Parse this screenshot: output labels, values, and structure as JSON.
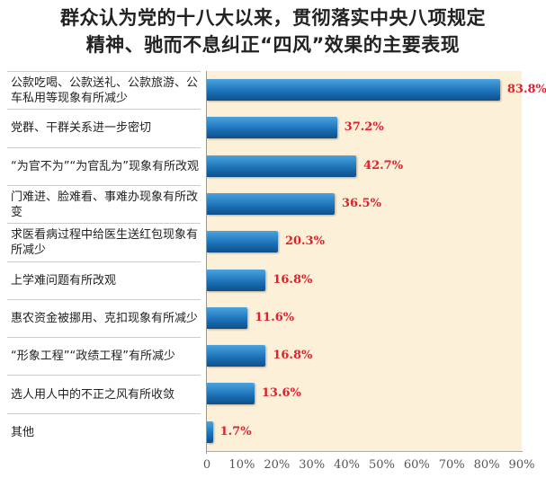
{
  "chart_data": {
    "type": "bar",
    "orientation": "horizontal",
    "title": [
      "群众认为党的十八大以来，贯彻落实中央八项规定",
      "精神、驰而不息纠正“四风”效果的主要表现"
    ],
    "categories": [
      "公款吃喝、公款送礼、公款旅游、公车私用等现象有所减少",
      "党群、干群关系进一步密切",
      "“为官不为”“为官乱为”现象有所改观",
      "门难进、脸难看、事难办现象有所改变",
      "求医看病过程中给医生送红包现象有所减少",
      "上学难问题有所改观",
      "惠农资金被挪用、克扣现象有所减少",
      "“形象工程”“政绩工程”有所减少",
      "选人用人中的不正之风有所收敛",
      "其他"
    ],
    "values": [
      83.8,
      37.2,
      42.7,
      36.5,
      20.3,
      16.8,
      11.6,
      16.8,
      13.6,
      1.7
    ],
    "value_labels": [
      "83.8%",
      "37.2%",
      "42.7%",
      "36.5%",
      "20.3%",
      "16.8%",
      "11.6%",
      "16.8%",
      "13.6%",
      "1.7%"
    ],
    "xlim": [
      0,
      90
    ],
    "xticks": [
      "0",
      "10%",
      "20%",
      "30%",
      "40%",
      "50%",
      "60%",
      "70%",
      "80%",
      "90%"
    ],
    "grid": false,
    "colors": {
      "bar": "#1a6fb5",
      "value_label": "#e0202a",
      "plot_background": "#fdf0d9"
    }
  }
}
